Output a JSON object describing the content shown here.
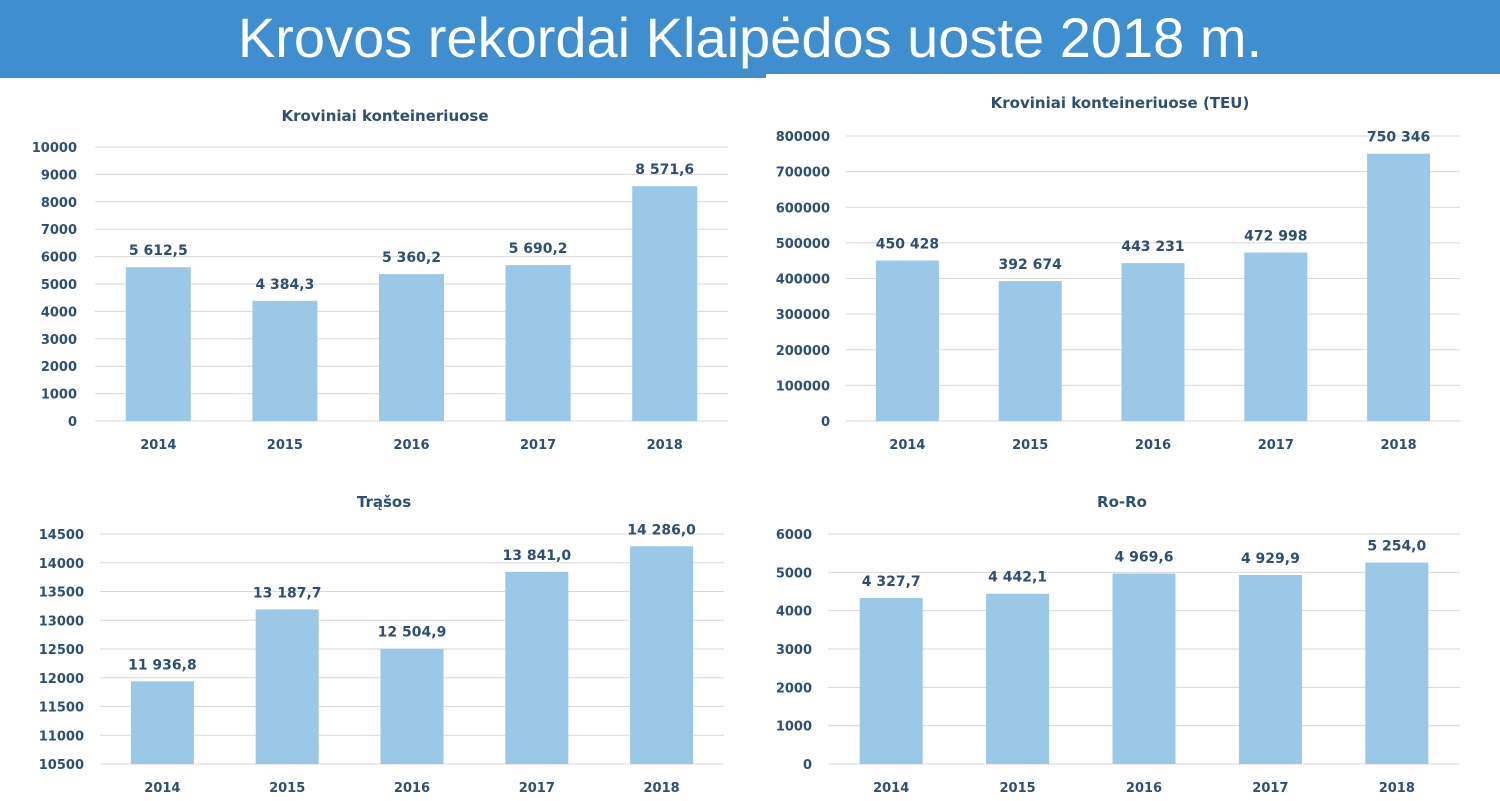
{
  "page": {
    "title": "Krovos rekordai Klaipėdos uoste 2018 m.",
    "header_color": "#3f8fd0"
  },
  "chart_data": [
    {
      "type": "bar",
      "title": "Kroviniai konteineriuose",
      "categories": [
        "2014",
        "2015",
        "2016",
        "2017",
        "2018"
      ],
      "values": [
        5612.5,
        4384.3,
        5360.2,
        5690.2,
        8571.6
      ],
      "value_labels": [
        "5 612,5",
        "4 384,3",
        "5 360,2",
        "5 690,2",
        "8 571,6"
      ],
      "ylim": [
        0,
        10000
      ],
      "yticks": [
        "0",
        "1000",
        "2000",
        "3000",
        "4000",
        "5000",
        "6000",
        "7000",
        "8000",
        "9000",
        "10000"
      ],
      "grid": true,
      "bar_color": "#9ac8e6"
    },
    {
      "type": "bar",
      "title": "Kroviniai konteineriuose (TEU)",
      "categories": [
        "2014",
        "2015",
        "2016",
        "2017",
        "2018"
      ],
      "values": [
        450428,
        392674,
        443231,
        472998,
        750346
      ],
      "value_labels": [
        "450 428",
        "392 674",
        "443 231",
        "472 998",
        "750 346"
      ],
      "ylim": [
        0,
        800000
      ],
      "yticks": [
        "0",
        "100000",
        "200000",
        "300000",
        "400000",
        "500000",
        "600000",
        "700000",
        "800000"
      ],
      "grid": true,
      "bar_color": "#9ac8e6"
    },
    {
      "type": "bar",
      "title": "Trąšos",
      "categories": [
        "2014",
        "2015",
        "2016",
        "2017",
        "2018"
      ],
      "values": [
        11936.8,
        13187.7,
        12504.9,
        13841.0,
        14286.0
      ],
      "value_labels": [
        "11 936,8",
        "13 187,7",
        "12 504,9",
        "13 841,0",
        "14 286,0"
      ],
      "ylim": [
        10500,
        14500
      ],
      "yticks": [
        "10500",
        "11000",
        "11500",
        "12000",
        "12500",
        "13000",
        "13500",
        "14000",
        "14500"
      ],
      "grid": true,
      "bar_color": "#9ac8e6"
    },
    {
      "type": "bar",
      "title": "Ro-Ro",
      "categories": [
        "2014",
        "2015",
        "2016",
        "2017",
        "2018"
      ],
      "values": [
        4327.7,
        4442.1,
        4969.6,
        4929.9,
        5254.0
      ],
      "value_labels": [
        "4 327,7",
        "4 442,1",
        "4 969,6",
        "4 929,9",
        "5 254,0"
      ],
      "ylim": [
        0,
        6000
      ],
      "yticks": [
        "0",
        "1000",
        "2000",
        "3000",
        "4000",
        "5000",
        "6000"
      ],
      "grid": true,
      "bar_color": "#9ac8e6"
    }
  ]
}
